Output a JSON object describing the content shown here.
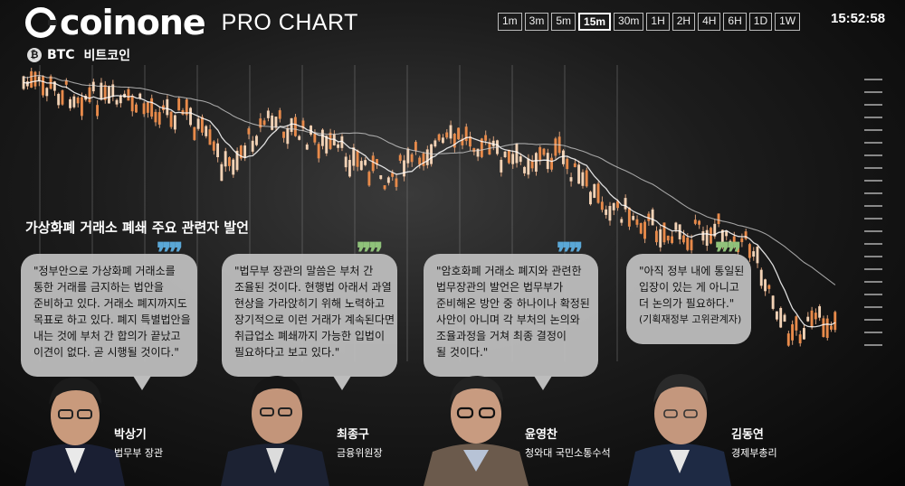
{
  "header": {
    "brand": "coinone",
    "subtitle": "PRO CHART",
    "pair_symbol": "BTC",
    "pair_name": "비트코인",
    "time_frames": [
      "1m",
      "3m",
      "5m",
      "15m",
      "30m",
      "1H",
      "2H",
      "4H",
      "6H",
      "1D",
      "1W"
    ],
    "active_time_frame": "15m",
    "clock": "15:52:58"
  },
  "chart_data": {
    "type": "candlestick",
    "title": "",
    "xlabel": "",
    "ylabel": "",
    "trend": "downward",
    "series": [
      {
        "name": "",
        "kind": "candles",
        "color": "#e07a3f"
      },
      {
        "name": "",
        "kind": "moving-average",
        "color": "#ffffff"
      }
    ]
  },
  "headline": "가상화폐 거래소 폐쇄 주요 관련자 발언",
  "quotes": [
    {
      "quote_color": "#5aa7d6",
      "lines": [
        "\"정부안으로 가상화폐 거래소를",
        "통한 거래를  금지하는 법안을",
        "준비하고 있다. 거래소 폐지까지도",
        "목표로 하고 있다. 폐지 특별법안을",
        "내는 것에 부처 간 합의가 끝났고",
        "이견이 없다. 곧 시행될 것이다.\""
      ],
      "name": "박상기",
      "title": "법무부 장관"
    },
    {
      "quote_color": "#8fc17a",
      "lines": [
        "\"법무부 장관의 말씀은 부처 간",
        "조율된 것이다. 현행법 아래서 과열",
        "현상을 가라앉히기 위해 노력하고",
        "장기적으로 이런 거래가 계속된다면",
        "취급업소 폐쇄까지 가능한 입법이",
        "필요하다고 보고 있다.\""
      ],
      "name": "최종구",
      "title": "금융위원장"
    },
    {
      "quote_color": "#5aa7d6",
      "lines": [
        "\"암호화폐 거래소 폐지와 관련한",
        "법무장관의 발언은 법무부가",
        "준비해온 방안 중 하나이나 확정된",
        "사안이 아니며 각 부처의 논의와",
        "조율과정을 거쳐 최종 결정이",
        "될 것이다.\""
      ],
      "name": "윤영찬",
      "title": "청와대 국민소통수석"
    },
    {
      "quote_color": "#8fc17a",
      "lines": [
        "\"아직 정부 내에 통일된",
        "입장이 있는 게 아니고",
        "더 논의가 필요하다.\"",
        "(기획재정부 고위관계자)"
      ],
      "name": "김동연",
      "title": "경제부총리"
    }
  ]
}
